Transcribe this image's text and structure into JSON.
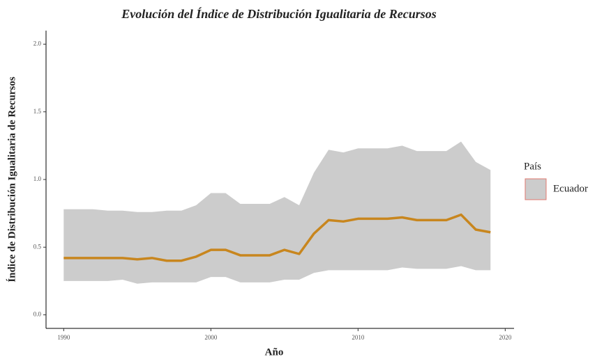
{
  "chart_data": {
    "type": "line",
    "title": "Evolución del Índice de Distribución Igualitaria de Recursos",
    "x_label": "Año",
    "y_label": "Índice de Distribución Igualitaria de Recursos",
    "legend_title": "País",
    "x": [
      1990,
      1991,
      1992,
      1993,
      1994,
      1995,
      1996,
      1997,
      1998,
      1999,
      2000,
      2001,
      2002,
      2003,
      2004,
      2005,
      2006,
      2007,
      2008,
      2009,
      2010,
      2011,
      2012,
      2013,
      2014,
      2015,
      2016,
      2017,
      2018,
      2019
    ],
    "series": [
      {
        "name": "Ecuador",
        "color": "#c8861e",
        "band_color": "#cccccc",
        "key_border": "#e0786f",
        "values": [
          0.42,
          0.42,
          0.42,
          0.42,
          0.42,
          0.41,
          0.42,
          0.4,
          0.4,
          0.43,
          0.48,
          0.48,
          0.44,
          0.44,
          0.44,
          0.48,
          0.45,
          0.6,
          0.7,
          0.69,
          0.71,
          0.71,
          0.71,
          0.72,
          0.7,
          0.7,
          0.7,
          0.74,
          0.63,
          0.61
        ],
        "upper": [
          0.78,
          0.78,
          0.78,
          0.77,
          0.77,
          0.76,
          0.76,
          0.77,
          0.77,
          0.81,
          0.9,
          0.9,
          0.82,
          0.82,
          0.82,
          0.87,
          0.81,
          1.05,
          1.22,
          1.2,
          1.23,
          1.23,
          1.23,
          1.25,
          1.21,
          1.21,
          1.21,
          1.28,
          1.13,
          1.07
        ],
        "lower": [
          0.25,
          0.25,
          0.25,
          0.25,
          0.26,
          0.23,
          0.24,
          0.24,
          0.24,
          0.24,
          0.28,
          0.28,
          0.24,
          0.24,
          0.24,
          0.26,
          0.26,
          0.31,
          0.33,
          0.33,
          0.33,
          0.33,
          0.33,
          0.35,
          0.34,
          0.34,
          0.34,
          0.36,
          0.33,
          0.33
        ]
      }
    ],
    "xlim": [
      1988.8,
      2020.6
    ],
    "xticks": [
      1990,
      2000,
      2010,
      2020
    ],
    "ylim": [
      -0.1,
      2.1
    ],
    "yticks": [
      {
        "value": 0,
        "label": "0.0"
      },
      0.5,
      {
        "value": 1,
        "label": "1.0"
      },
      1.5,
      {
        "value": 2,
        "label": "2.0"
      }
    ]
  }
}
